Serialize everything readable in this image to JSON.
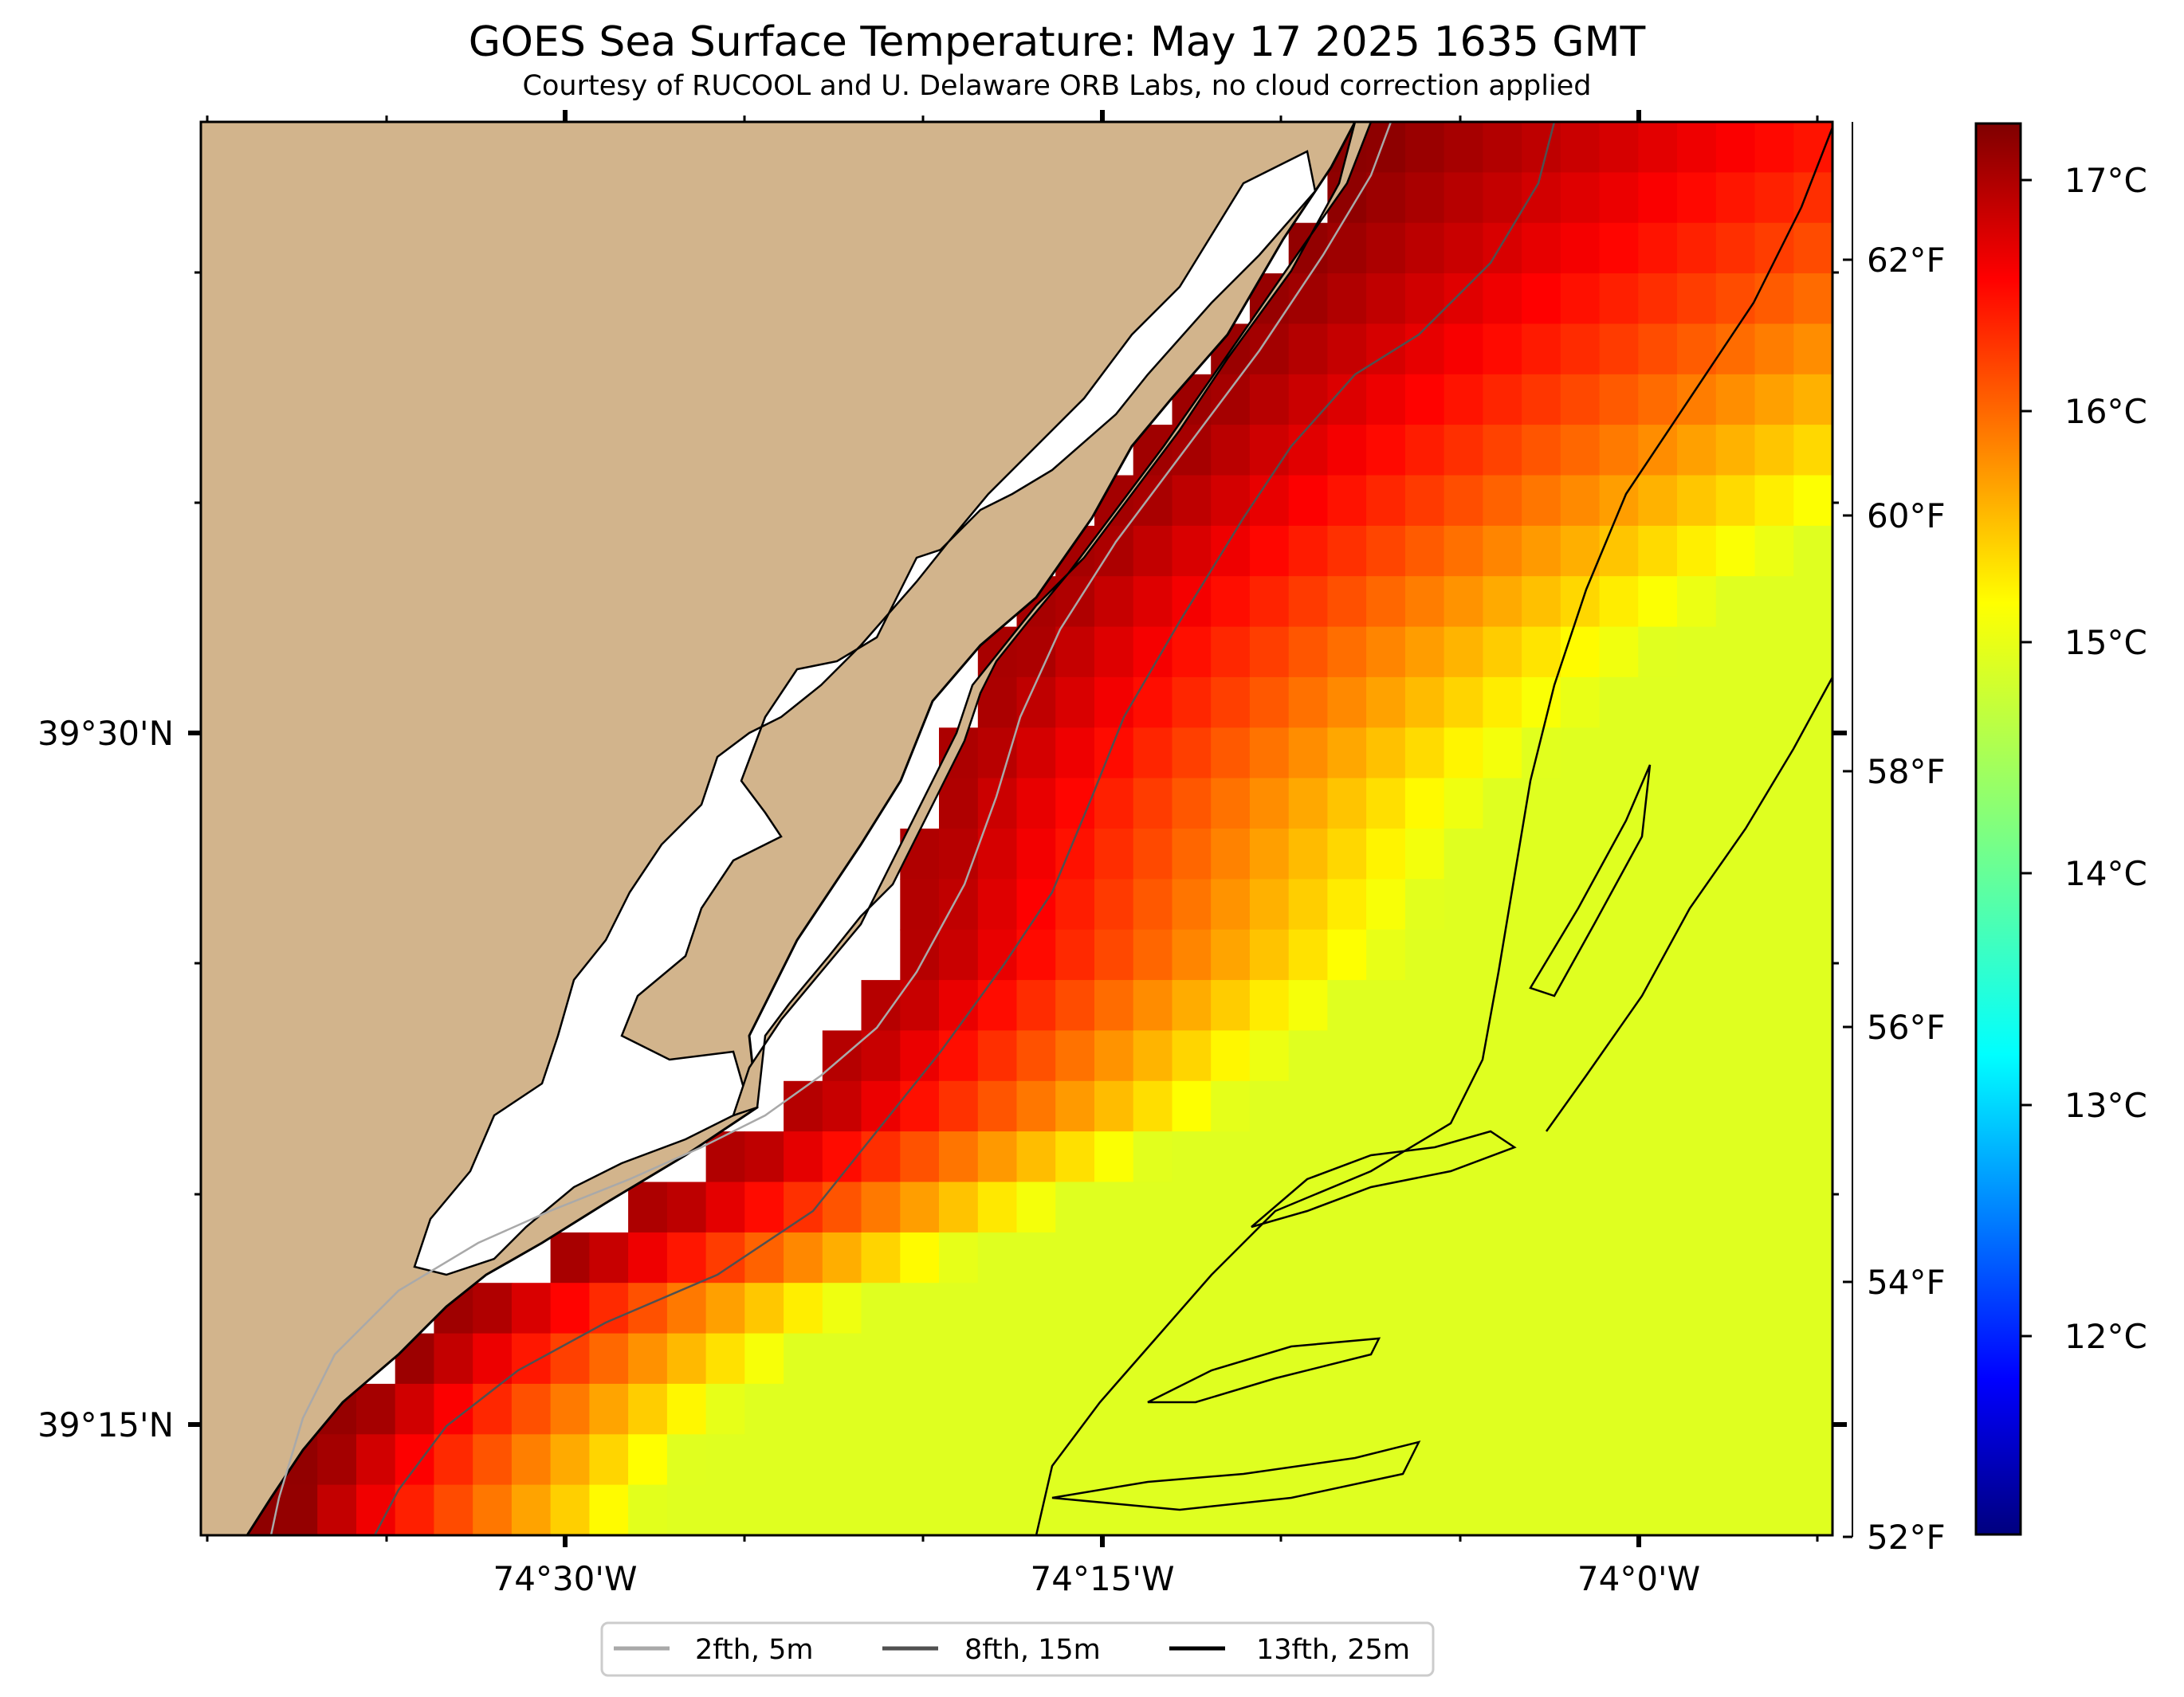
{
  "title": "GOES Sea Surface Temperature: May 17 2025 1635 GMT",
  "subtitle": "Courtesy of RUCOOL and U. Delaware ORB Labs, no cloud correction applied",
  "map": {
    "lon_labels": [
      "74°30'W",
      "74°15'W",
      "74°0'W"
    ],
    "lat_labels": [
      "39°30'N",
      "39°15'N"
    ],
    "land_color": "#d2b48c"
  },
  "colorbar": {
    "celsius_labels": [
      "17°C",
      "16°C",
      "15°C",
      "14°C",
      "13°C",
      "12°C"
    ],
    "fahrenheit_labels": [
      "62°F",
      "60°F",
      "58°F",
      "56°F",
      "54°F",
      "52°F"
    ],
    "colormap": "jet",
    "range_c": [
      11.1,
      17.2
    ]
  },
  "legend": [
    {
      "label": "2fth, 5m",
      "color": "#a9a9a9"
    },
    {
      "label": "8fth, 15m",
      "color": "#505050"
    },
    {
      "label": "13fth, 25m",
      "color": "#000000"
    }
  ]
}
